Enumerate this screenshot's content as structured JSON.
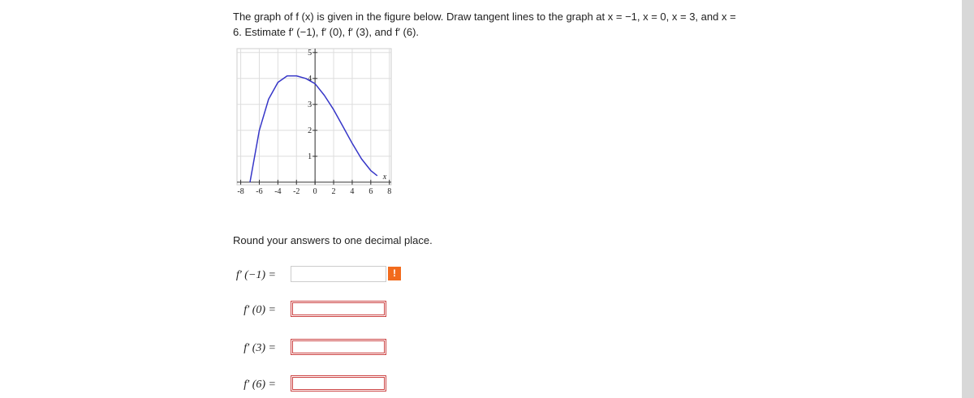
{
  "question": "The graph of f (x) is given in the figure below. Draw tangent lines to the graph at x = −1, x = 0, x = 3, and x = 6. Estimate f′ (−1), f′ (0), f′ (3), and f′ (6).",
  "chart_data": {
    "type": "line",
    "x_label": "x",
    "x": [
      -7,
      -6,
      -5,
      -4,
      -3,
      -2,
      -1,
      0,
      1,
      2,
      3,
      4,
      5,
      6,
      6.7
    ],
    "series": [
      {
        "color": "#3636c8",
        "values": [
          0,
          2.0,
          3.2,
          3.85,
          4.1,
          4.1,
          4.0,
          3.8,
          3.35,
          2.8,
          2.15,
          1.5,
          0.9,
          0.45,
          0.25
        ]
      }
    ],
    "xlim": [
      -8.4,
      8.2
    ],
    "ylim": [
      -0.1,
      5.15
    ],
    "xticks": [
      -8,
      -6,
      -4,
      -2,
      0,
      2,
      4,
      6,
      8
    ],
    "yticks": [
      1,
      2,
      3,
      4,
      5
    ],
    "grid": true
  },
  "instruction": "Round your answers to one decimal place.",
  "answers": [
    {
      "label": "f′ (−1) =",
      "alert": "!"
    },
    {
      "label": "f′ (0) ="
    },
    {
      "label": "f′ (3) ="
    },
    {
      "label": "f′ (6) ="
    }
  ]
}
